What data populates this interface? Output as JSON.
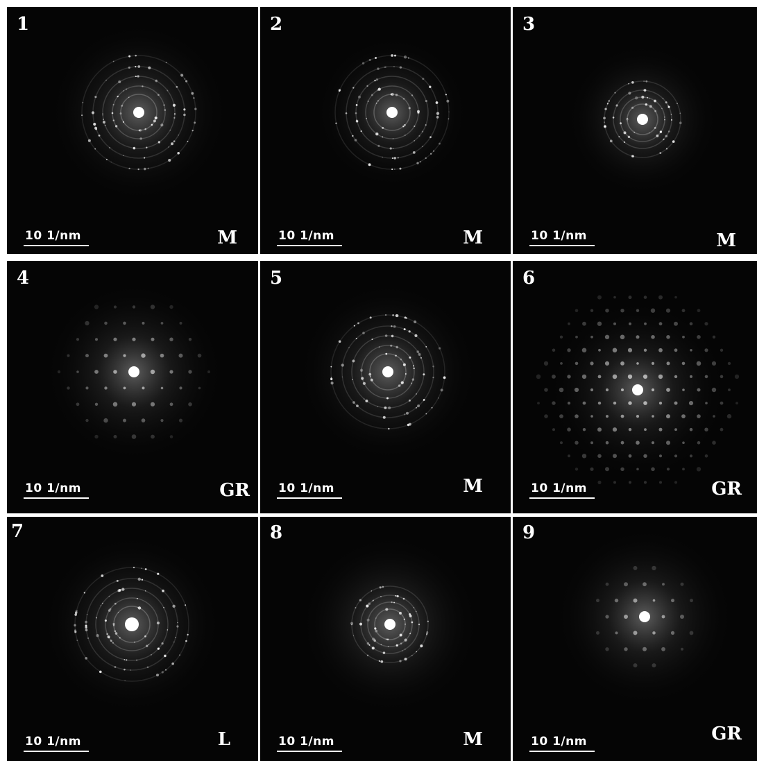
{
  "panels": [
    {
      "number": "1",
      "scale_label": "10 1/nm",
      "phase": "M",
      "pattern": "ring-spotty",
      "brightness": "bright"
    },
    {
      "number": "2",
      "scale_label": "10 1/nm",
      "phase": "M",
      "pattern": "ring-spotty",
      "brightness": "dim"
    },
    {
      "number": "3",
      "scale_label": "10 1/nm",
      "phase": "M",
      "pattern": "ring-fine",
      "brightness": "dim"
    },
    {
      "number": "4",
      "scale_label": "10 1/nm",
      "phase": "GR",
      "pattern": "hexagonal-spots",
      "brightness": "medium"
    },
    {
      "number": "5",
      "scale_label": "10 1/nm",
      "phase": "M",
      "pattern": "ring-spotty",
      "brightness": "bright"
    },
    {
      "number": "6",
      "scale_label": "10 1/nm",
      "phase": "GR",
      "pattern": "hexagonal-spots-dense",
      "brightness": "medium"
    },
    {
      "number": "7",
      "scale_label": "10 1/nm",
      "phase": "L",
      "pattern": "ring-spotty",
      "brightness": "bright"
    },
    {
      "number": "8",
      "scale_label": "10 1/nm",
      "phase": "M",
      "pattern": "ring-fine",
      "brightness": "medium"
    },
    {
      "number": "9",
      "scale_label": "10 1/nm",
      "phase": "GR",
      "pattern": "hexagonal-spots",
      "brightness": "medium"
    }
  ],
  "colors": {
    "background": "#050505",
    "text": "#ffffff",
    "divider": "#ffffff"
  }
}
